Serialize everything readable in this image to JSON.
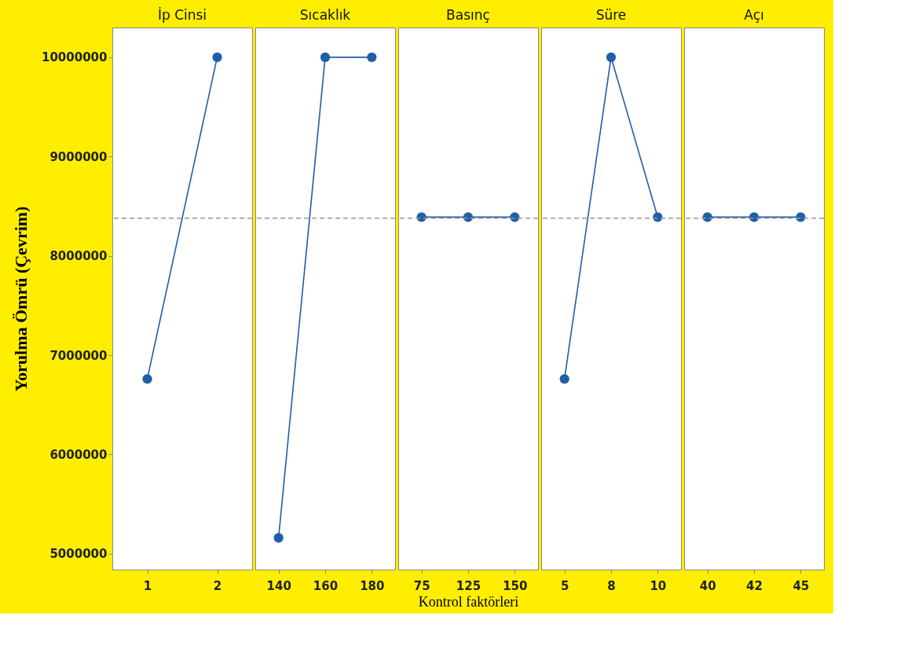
{
  "chart_data": [
    {
      "type": "line",
      "title": "İp Cinsi",
      "ylabel": "Yorulma Ömrü (Çevrim)",
      "categories": [
        "1",
        "2"
      ],
      "series": [
        {
          "color": "#1f5fa8",
          "values": [
            6760000,
            10000000
          ]
        }
      ],
      "ylim": [
        4840000,
        10300000
      ],
      "yticks": [
        5000000,
        6000000,
        7000000,
        8000000,
        9000000,
        10000000
      ],
      "marker": "circle",
      "line_style": "solid",
      "grid": false,
      "ref_lines": [
        {
          "axis": "y",
          "value": 8380000,
          "color": "#999999",
          "line_style": "dashed"
        }
      ]
    },
    {
      "type": "line",
      "title": "Sıcaklık",
      "categories": [
        "140",
        "160",
        "180"
      ],
      "series": [
        {
          "color": "#1f5fa8",
          "values": [
            5160000,
            10000000,
            10000000
          ]
        }
      ],
      "ylim": [
        4840000,
        10300000
      ],
      "tick_labels": "x",
      "marker": "circle",
      "line_style": "solid",
      "grid": false,
      "ref_lines": [
        {
          "axis": "y",
          "value": 8380000,
          "color": "#999999",
          "line_style": "dashed"
        }
      ]
    },
    {
      "type": "line",
      "title": "Basınç",
      "xlabel": "Kontrol faktörleri",
      "categories": [
        "75",
        "125",
        "150"
      ],
      "series": [
        {
          "color": "#1f5fa8",
          "values": [
            8390000,
            8390000,
            8390000
          ]
        }
      ],
      "ylim": [
        4840000,
        10300000
      ],
      "tick_labels": "x",
      "marker": "circle",
      "line_style": "solid",
      "grid": false,
      "ref_lines": [
        {
          "axis": "y",
          "value": 8380000,
          "color": "#999999",
          "line_style": "dashed"
        }
      ]
    },
    {
      "type": "line",
      "title": "Süre",
      "categories": [
        "5",
        "8",
        "10"
      ],
      "series": [
        {
          "color": "#1f5fa8",
          "values": [
            6760000,
            10000000,
            8390000
          ]
        }
      ],
      "ylim": [
        4840000,
        10300000
      ],
      "tick_labels": "x",
      "marker": "circle",
      "line_style": "solid",
      "grid": false,
      "ref_lines": [
        {
          "axis": "y",
          "value": 8380000,
          "color": "#999999",
          "line_style": "dashed"
        }
      ]
    },
    {
      "type": "line",
      "title": "Açı",
      "categories": [
        "40",
        "42",
        "45"
      ],
      "series": [
        {
          "color": "#1f5fa8",
          "values": [
            8390000,
            8390000,
            8390000
          ]
        }
      ],
      "ylim": [
        4840000,
        10300000
      ],
      "tick_labels": "x",
      "marker": "circle",
      "line_style": "solid",
      "grid": false,
      "ref_lines": [
        {
          "axis": "y",
          "value": 8380000,
          "color": "#999999",
          "line_style": "dashed"
        }
      ]
    }
  ]
}
